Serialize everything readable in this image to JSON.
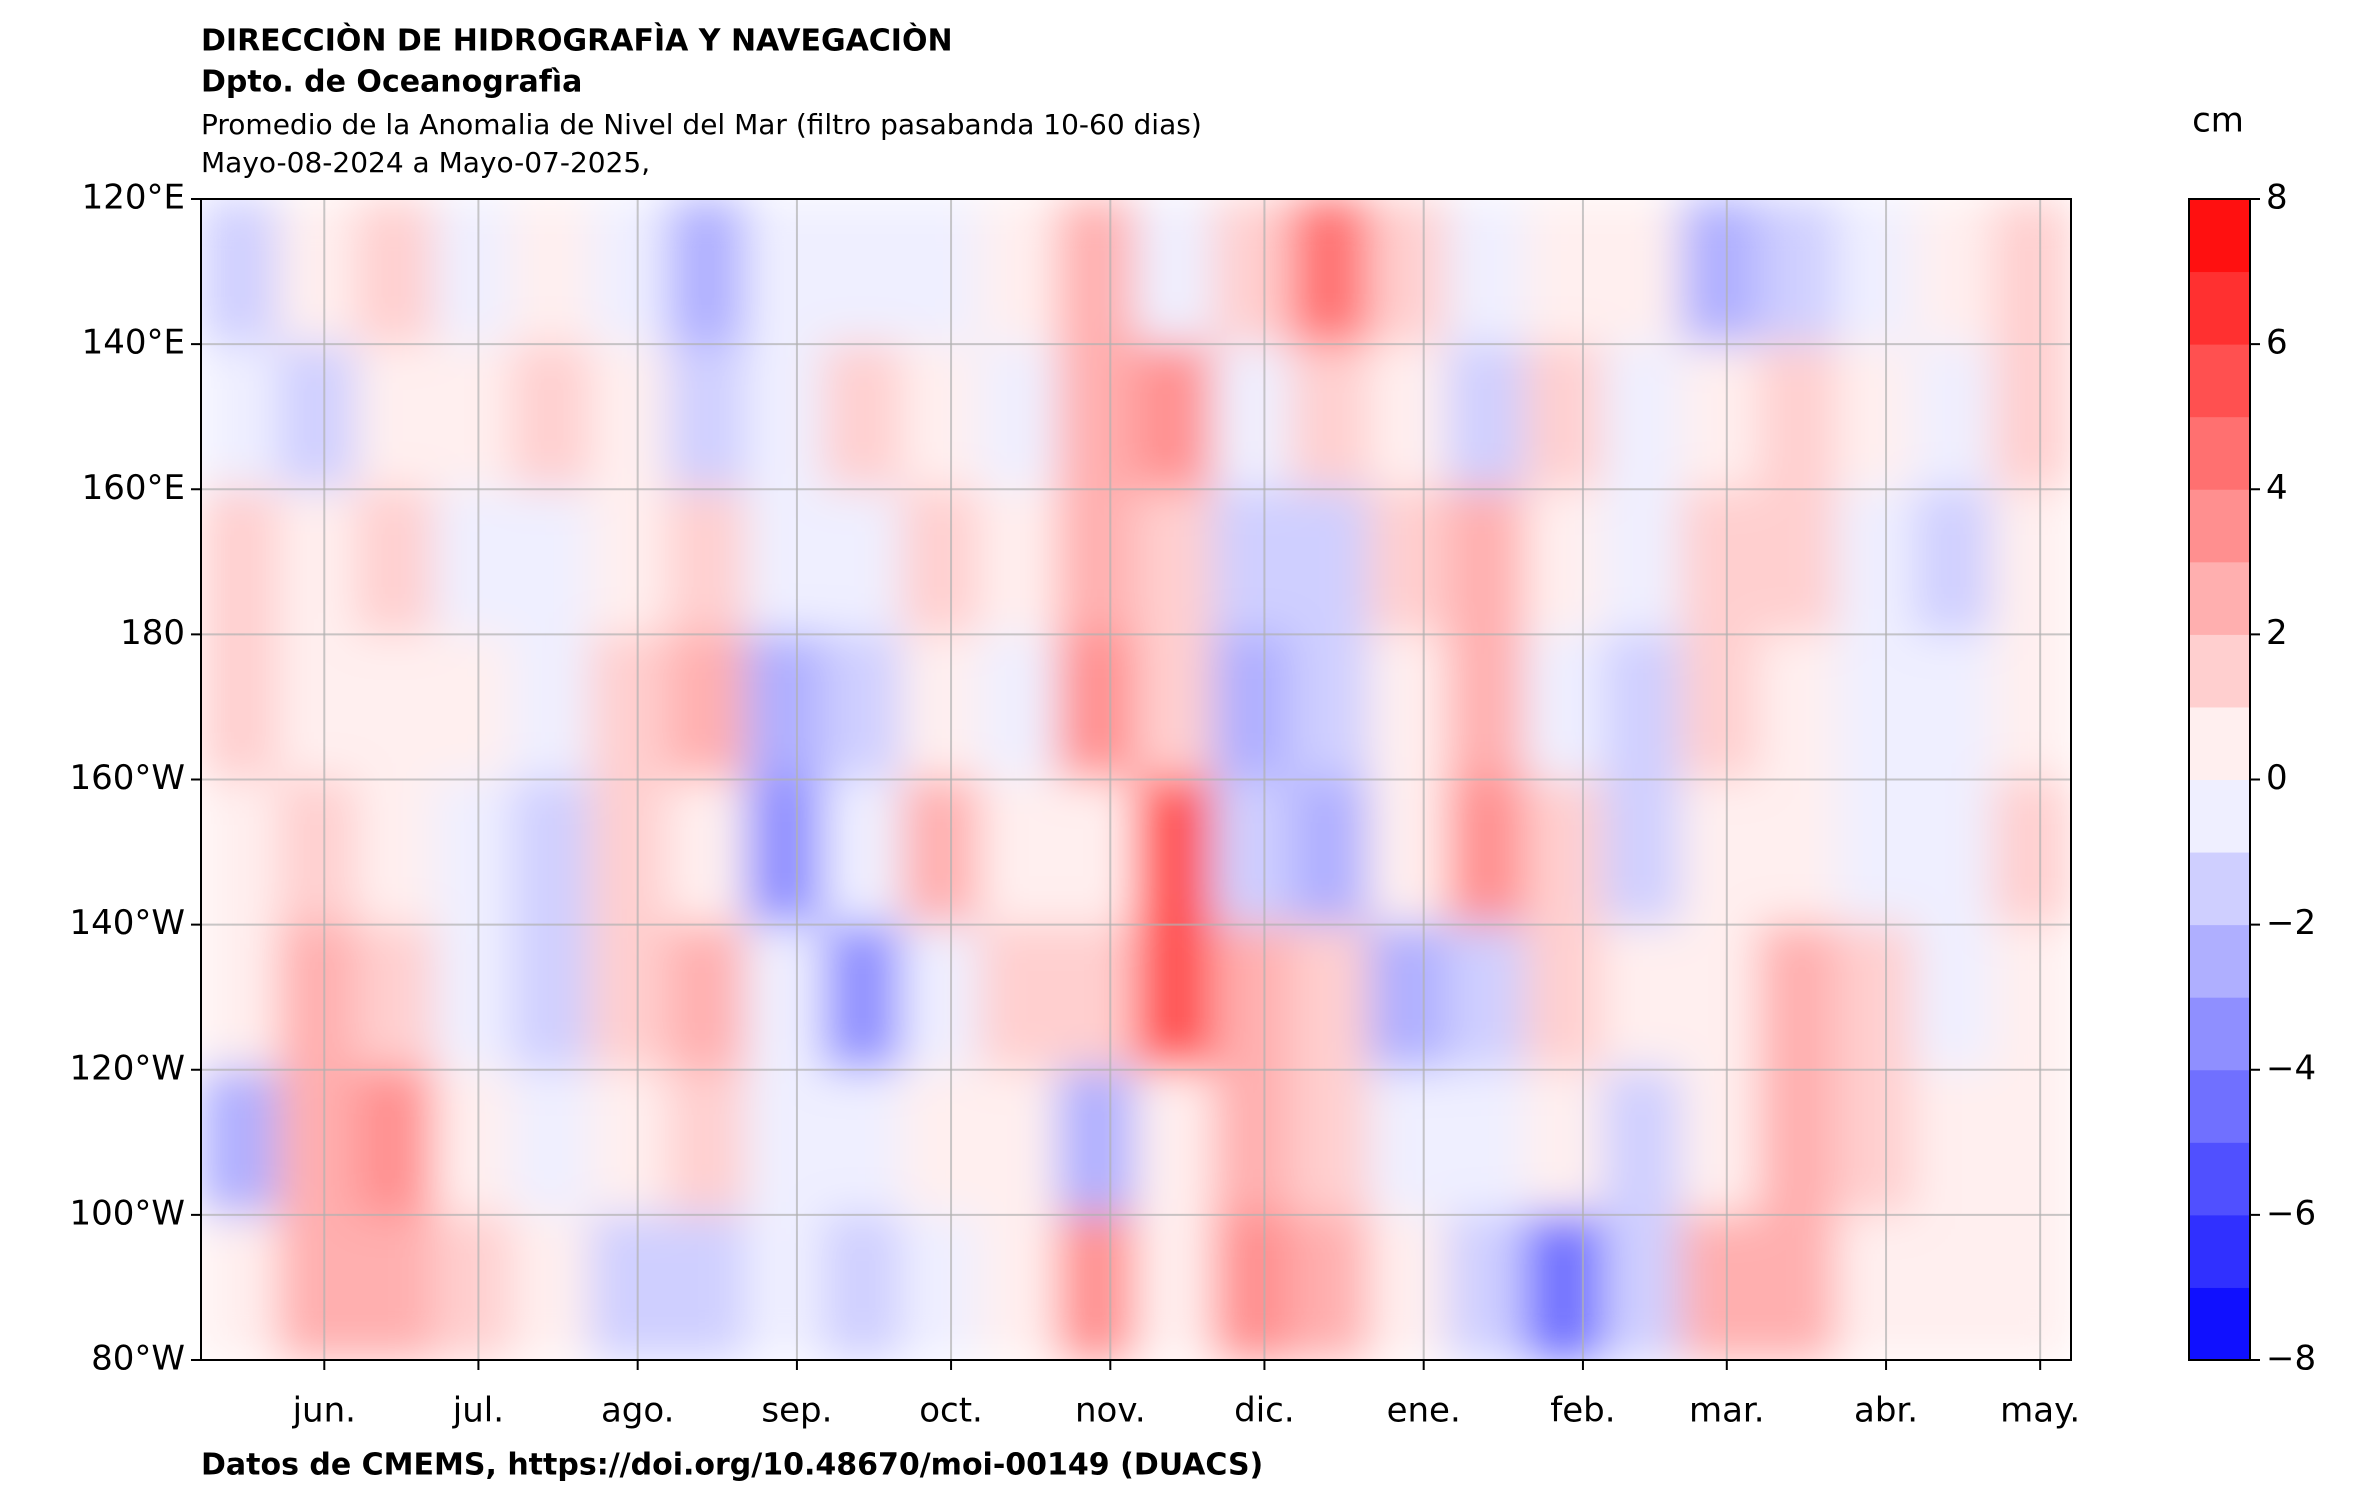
{
  "chart_data": {
    "type": "heatmap",
    "header": [
      "DIRECCIÒN DE HIDROGRAFÌA Y NAVEGACIÒN",
      "Dpto. de Oceanografìa"
    ],
    "title": "Promedio de la Anomalia de Nivel del Mar (filtro pasabanda 10-60 dias)",
    "subtitle": "Mayo-08-2024 a Mayo-07-2025,",
    "source": "Datos de CMEMS, https://doi.org/10.48670/moi-00149 (DUACS)",
    "colorbar_label": "cm",
    "colormap": "bwr",
    "clim": [
      -8,
      8
    ],
    "levels": [
      -8,
      -7,
      -6,
      -5,
      -4,
      -3,
      -2,
      -1,
      0,
      1,
      2,
      3,
      4,
      5,
      6,
      7,
      8
    ],
    "cbar_ticks": [
      {
        "value": -8,
        "label": "−8"
      },
      {
        "value": -6,
        "label": "−6"
      },
      {
        "value": -4,
        "label": "−4"
      },
      {
        "value": -2,
        "label": "−2"
      },
      0,
      2,
      4,
      6,
      8
    ],
    "xlim": [
      "2024-05-08",
      "2025-05-07"
    ],
    "xticks": [
      {
        "value": "2024-06",
        "label": "jun."
      },
      {
        "value": "2024-07",
        "label": "jul."
      },
      {
        "value": "2024-08",
        "label": "ago."
      },
      {
        "value": "2024-09",
        "label": "sep."
      },
      {
        "value": "2024-10",
        "label": "oct."
      },
      {
        "value": "2024-11",
        "label": "nov."
      },
      {
        "value": "2024-12",
        "label": "dic."
      },
      {
        "value": "2025-01",
        "label": "ene."
      },
      {
        "value": "2025-02",
        "label": "feb."
      },
      {
        "value": "2025-03",
        "label": "mar."
      },
      {
        "value": "2025-04",
        "label": "abr."
      },
      {
        "value": "2025-05",
        "label": "may."
      }
    ],
    "ylim": [
      120,
      280
    ],
    "y_inverted": true,
    "yticks": [
      {
        "value": 120,
        "label": "120°E"
      },
      {
        "value": 140,
        "label": "140°E"
      },
      {
        "value": 160,
        "label": "160°E"
      },
      180,
      {
        "value": 200,
        "label": "160°W"
      },
      {
        "value": 220,
        "label": "140°W"
      },
      {
        "value": 240,
        "label": "120°W"
      },
      {
        "value": 260,
        "label": "100°W"
      },
      {
        "value": 280,
        "label": "80°W"
      }
    ],
    "grid": true,
    "values": [
      [
        -1.5,
        0.5,
        1,
        -0.5,
        0.5,
        -1,
        -2.5,
        -0.5,
        -1,
        -0.5,
        0.5,
        2,
        -1,
        1,
        4.5,
        1,
        -1,
        0.5,
        0,
        -2.5,
        -2,
        -1,
        0.5,
        1
      ],
      [
        -1,
        -1.5,
        0.5,
        0.5,
        1,
        0,
        -2,
        -1,
        1.5,
        0,
        -1,
        2.5,
        3,
        -1,
        1,
        0.5,
        -1.5,
        1,
        -0.5,
        0,
        1.5,
        0,
        -0.5,
        1
      ],
      [
        1,
        0.5,
        1,
        -0.5,
        -1,
        0.5,
        1,
        -1,
        -1,
        1.5,
        0.5,
        2,
        1.5,
        -2,
        -2,
        1,
        2.5,
        0.5,
        -1,
        1,
        1.5,
        -1,
        -1.5,
        0.5
      ],
      [
        1.5,
        0.5,
        0.5,
        0,
        -1,
        1.5,
        2,
        -3,
        -2,
        0.5,
        -0.5,
        3,
        1,
        -3,
        -2,
        0.5,
        2,
        -0.5,
        -1.5,
        1,
        0.5,
        -1,
        -1,
        0
      ],
      [
        0.5,
        1.5,
        0.5,
        -0.5,
        -1.5,
        1,
        0.5,
        -3.5,
        -1,
        2,
        0.5,
        0,
        5,
        -2,
        -2.5,
        0.5,
        3,
        1.5,
        -1.5,
        0.5,
        0,
        -1,
        -1,
        1
      ],
      [
        0.5,
        2.5,
        1,
        -0.5,
        -1.5,
        1.5,
        2,
        -1,
        -4,
        -1,
        1.5,
        1,
        5,
        2,
        1,
        -3,
        -2,
        1,
        0,
        0.5,
        2,
        1,
        -1,
        0
      ],
      [
        -3,
        2,
        3,
        0.5,
        -1,
        0,
        1.5,
        -0.5,
        -1,
        0,
        0.5,
        -2.5,
        0,
        2.5,
        1,
        -1,
        -0.5,
        0,
        -1.5,
        0,
        2,
        1,
        0.5,
        0
      ],
      [
        0.5,
        2,
        2.5,
        1,
        0,
        -2,
        -2,
        -1,
        -1.5,
        -0.5,
        0.5,
        3,
        0.5,
        3,
        2,
        0.5,
        -2,
        -4.5,
        -2,
        2,
        2.5,
        0.5,
        0,
        0.5
      ]
    ]
  }
}
